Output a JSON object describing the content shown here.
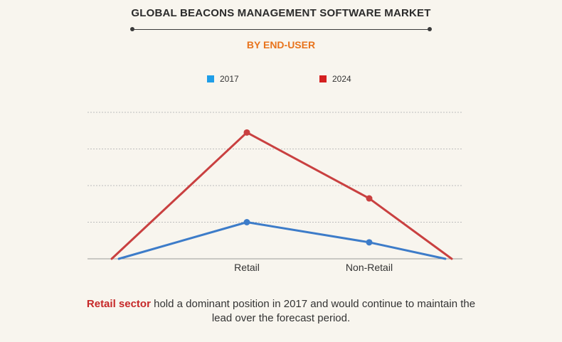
{
  "header": {
    "title": "GLOBAL BEACONS MANAGEMENT SOFTWARE MARKET",
    "subtitle": "BY END-USER",
    "subtitle_color": "#e8731c"
  },
  "caption": {
    "highlight": "Retail sector",
    "highlight_color": "#c62828",
    "text_line1": " hold a dominant position in 2017 and would continue to maintain the",
    "text_line2": "lead over the forecast period."
  },
  "chart_data": {
    "type": "line",
    "categories": [
      "Retail",
      "Non-Retail"
    ],
    "series": [
      {
        "name": "2017",
        "color": "#3d7cc9",
        "legend_color": "#1f9ee8",
        "values": [
          20,
          9
        ]
      },
      {
        "name": "2024",
        "color": "#c94040",
        "legend_color": "#d42020",
        "values": [
          69,
          33
        ]
      }
    ],
    "ylim": [
      0,
      80
    ],
    "grid": true,
    "legend_position": "top"
  }
}
